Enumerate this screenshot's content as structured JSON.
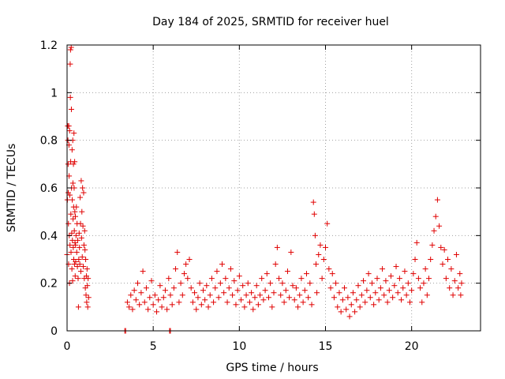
{
  "chart_data": {
    "type": "scatter",
    "title": "Day 184 of 2025, SRMTID for receiver huel",
    "xlabel": "GPS time / hours",
    "ylabel": "SRMTID / TECUs",
    "xlim": [
      0,
      24
    ],
    "ylim": [
      0,
      1.2
    ],
    "xticks": [
      0,
      5,
      10,
      15,
      20
    ],
    "xtick_labels": [
      "0",
      "5",
      "10",
      "15",
      "20"
    ],
    "yticks": [
      0,
      0.2,
      0.4,
      0.6,
      0.8,
      1.0,
      1.2
    ],
    "ytick_labels": [
      "0",
      "0.2",
      "0.4",
      "0.6",
      "0.8",
      "1",
      "1.2"
    ],
    "grid": true,
    "marker": "+",
    "color": "#e00000",
    "series": [
      {
        "name": "SRMTID",
        "points": [
          [
            0.0,
            0.32
          ],
          [
            0.02,
            0.55
          ],
          [
            0.04,
            0.86
          ],
          [
            0.05,
            0.8
          ],
          [
            0.06,
            0.7
          ],
          [
            0.07,
            0.58
          ],
          [
            0.08,
            0.45
          ],
          [
            0.09,
            0.28
          ],
          [
            0.1,
            0.86
          ],
          [
            0.11,
            0.78
          ],
          [
            0.12,
            0.65
          ],
          [
            0.13,
            0.4
          ],
          [
            0.14,
            0.2
          ],
          [
            0.15,
            0.84
          ],
          [
            0.16,
            0.57
          ],
          [
            0.17,
            0.36
          ],
          [
            0.18,
            1.12
          ],
          [
            0.19,
            0.98
          ],
          [
            0.2,
            1.18
          ],
          [
            0.21,
            0.71
          ],
          [
            0.22,
            0.49
          ],
          [
            0.23,
            0.33
          ],
          [
            0.24,
            1.19
          ],
          [
            0.25,
            0.93
          ],
          [
            0.26,
            0.6
          ],
          [
            0.27,
            0.41
          ],
          [
            0.28,
            0.26
          ],
          [
            0.29,
            0.76
          ],
          [
            0.3,
            0.55
          ],
          [
            0.31,
            0.38
          ],
          [
            0.32,
            0.21
          ],
          [
            0.33,
            0.8
          ],
          [
            0.34,
            0.62
          ],
          [
            0.35,
            0.47
          ],
          [
            0.36,
            0.35
          ],
          [
            0.37,
            0.7
          ],
          [
            0.38,
            0.52
          ],
          [
            0.39,
            0.3
          ],
          [
            0.4,
            0.83
          ],
          [
            0.41,
            0.6
          ],
          [
            0.42,
            0.42
          ],
          [
            0.43,
            0.28
          ],
          [
            0.44,
            0.71
          ],
          [
            0.45,
            0.5
          ],
          [
            0.46,
            0.37
          ],
          [
            0.47,
            0.23
          ],
          [
            0.48,
            0.48
          ],
          [
            0.49,
            0.36
          ],
          [
            0.5,
            0.29
          ],
          [
            0.52,
            0.4
          ],
          [
            0.54,
            0.52
          ],
          [
            0.56,
            0.33
          ],
          [
            0.58,
            0.45
          ],
          [
            0.6,
            0.27
          ],
          [
            0.62,
            0.38
          ],
          [
            0.64,
            0.22
          ],
          [
            0.66,
            0.1
          ],
          [
            0.68,
            0.3
          ],
          [
            0.7,
            0.41
          ],
          [
            0.72,
            0.35
          ],
          [
            0.74,
            0.28
          ],
          [
            0.76,
            0.56
          ],
          [
            0.78,
            0.45
          ],
          [
            0.8,
            0.25
          ],
          [
            0.82,
            0.63
          ],
          [
            0.84,
            0.39
          ],
          [
            0.86,
            0.5
          ],
          [
            0.88,
            0.31
          ],
          [
            0.9,
            0.6
          ],
          [
            0.92,
            0.44
          ],
          [
            0.94,
            0.27
          ],
          [
            0.96,
            0.58
          ],
          [
            0.98,
            0.36
          ],
          [
            1.0,
            0.22
          ],
          [
            1.02,
            0.42
          ],
          [
            1.04,
            0.34
          ],
          [
            1.06,
            0.18
          ],
          [
            1.08,
            0.3
          ],
          [
            1.1,
            0.15
          ],
          [
            1.12,
            0.23
          ],
          [
            1.14,
            0.12
          ],
          [
            1.16,
            0.26
          ],
          [
            1.18,
            0.19
          ],
          [
            1.2,
            0.1
          ],
          [
            1.22,
            0.22
          ],
          [
            1.25,
            0.14
          ],
          [
            3.35,
            0.0
          ],
          [
            3.4,
            0.0
          ],
          [
            5.95,
            0.0
          ],
          [
            6.0,
            0.0
          ],
          [
            3.5,
            0.12
          ],
          [
            3.6,
            0.1
          ],
          [
            3.7,
            0.15
          ],
          [
            3.8,
            0.09
          ],
          [
            3.9,
            0.17
          ],
          [
            4.0,
            0.13
          ],
          [
            4.1,
            0.2
          ],
          [
            4.2,
            0.11
          ],
          [
            4.3,
            0.16
          ],
          [
            4.4,
            0.25
          ],
          [
            4.5,
            0.12
          ],
          [
            4.6,
            0.18
          ],
          [
            4.7,
            0.09
          ],
          [
            4.8,
            0.14
          ],
          [
            4.9,
            0.21
          ],
          [
            5.0,
            0.11
          ],
          [
            5.1,
            0.15
          ],
          [
            5.2,
            0.08
          ],
          [
            5.3,
            0.13
          ],
          [
            5.4,
            0.19
          ],
          [
            5.5,
            0.1
          ],
          [
            5.6,
            0.14
          ],
          [
            5.7,
            0.17
          ],
          [
            5.8,
            0.09
          ],
          [
            5.9,
            0.22
          ],
          [
            6.0,
            0.15
          ],
          [
            6.1,
            0.11
          ],
          [
            6.2,
            0.18
          ],
          [
            6.3,
            0.26
          ],
          [
            6.4,
            0.33
          ],
          [
            6.5,
            0.12
          ],
          [
            6.6,
            0.2
          ],
          [
            6.7,
            0.15
          ],
          [
            6.8,
            0.24
          ],
          [
            6.9,
            0.28
          ],
          [
            7.0,
            0.22
          ],
          [
            7.1,
            0.3
          ],
          [
            7.2,
            0.18
          ],
          [
            7.3,
            0.12
          ],
          [
            7.4,
            0.16
          ],
          [
            7.5,
            0.09
          ],
          [
            7.6,
            0.14
          ],
          [
            7.7,
            0.2
          ],
          [
            7.8,
            0.11
          ],
          [
            7.9,
            0.17
          ],
          [
            8.0,
            0.13
          ],
          [
            8.1,
            0.19
          ],
          [
            8.2,
            0.1
          ],
          [
            8.3,
            0.15
          ],
          [
            8.4,
            0.22
          ],
          [
            8.5,
            0.12
          ],
          [
            8.6,
            0.18
          ],
          [
            8.7,
            0.25
          ],
          [
            8.8,
            0.14
          ],
          [
            8.9,
            0.2
          ],
          [
            9.0,
            0.28
          ],
          [
            9.1,
            0.16
          ],
          [
            9.2,
            0.22
          ],
          [
            9.3,
            0.12
          ],
          [
            9.4,
            0.18
          ],
          [
            9.5,
            0.26
          ],
          [
            9.6,
            0.15
          ],
          [
            9.7,
            0.21
          ],
          [
            9.8,
            0.11
          ],
          [
            9.9,
            0.17
          ],
          [
            10.0,
            0.23
          ],
          [
            10.1,
            0.13
          ],
          [
            10.2,
            0.19
          ],
          [
            10.3,
            0.1
          ],
          [
            10.4,
            0.15
          ],
          [
            10.5,
            0.2
          ],
          [
            10.6,
            0.12
          ],
          [
            10.7,
            0.16
          ],
          [
            10.8,
            0.09
          ],
          [
            10.9,
            0.14
          ],
          [
            11.0,
            0.19
          ],
          [
            11.1,
            0.11
          ],
          [
            11.2,
            0.15
          ],
          [
            11.3,
            0.22
          ],
          [
            11.4,
            0.13
          ],
          [
            11.5,
            0.17
          ],
          [
            11.6,
            0.24
          ],
          [
            11.7,
            0.14
          ],
          [
            11.8,
            0.2
          ],
          [
            11.9,
            0.1
          ],
          [
            12.0,
            0.16
          ],
          [
            12.1,
            0.28
          ],
          [
            12.2,
            0.35
          ],
          [
            12.3,
            0.22
          ],
          [
            12.4,
            0.15
          ],
          [
            12.5,
            0.2
          ],
          [
            12.6,
            0.12
          ],
          [
            12.7,
            0.17
          ],
          [
            12.8,
            0.25
          ],
          [
            12.9,
            0.14
          ],
          [
            13.0,
            0.33
          ],
          [
            13.1,
            0.19
          ],
          [
            13.2,
            0.13
          ],
          [
            13.3,
            0.18
          ],
          [
            13.4,
            0.1
          ],
          [
            13.5,
            0.15
          ],
          [
            13.6,
            0.22
          ],
          [
            13.7,
            0.12
          ],
          [
            13.8,
            0.17
          ],
          [
            13.9,
            0.24
          ],
          [
            14.0,
            0.14
          ],
          [
            14.1,
            0.2
          ],
          [
            14.2,
            0.11
          ],
          [
            14.3,
            0.54
          ],
          [
            14.35,
            0.49
          ],
          [
            14.4,
            0.4
          ],
          [
            14.45,
            0.28
          ],
          [
            14.5,
            0.16
          ],
          [
            14.6,
            0.32
          ],
          [
            14.7,
            0.36
          ],
          [
            14.8,
            0.22
          ],
          [
            14.9,
            0.3
          ],
          [
            15.0,
            0.35
          ],
          [
            15.1,
            0.45
          ],
          [
            15.2,
            0.26
          ],
          [
            15.3,
            0.18
          ],
          [
            15.4,
            0.24
          ],
          [
            15.5,
            0.14
          ],
          [
            15.6,
            0.2
          ],
          [
            15.7,
            0.1
          ],
          [
            15.8,
            0.16
          ],
          [
            15.9,
            0.08
          ],
          [
            16.0,
            0.13
          ],
          [
            16.1,
            0.18
          ],
          [
            16.2,
            0.09
          ],
          [
            16.3,
            0.14
          ],
          [
            16.4,
            0.06
          ],
          [
            16.5,
            0.11
          ],
          [
            16.6,
            0.16
          ],
          [
            16.7,
            0.08
          ],
          [
            16.8,
            0.13
          ],
          [
            16.9,
            0.19
          ],
          [
            17.0,
            0.1
          ],
          [
            17.1,
            0.15
          ],
          [
            17.2,
            0.21
          ],
          [
            17.3,
            0.12
          ],
          [
            17.4,
            0.17
          ],
          [
            17.5,
            0.24
          ],
          [
            17.6,
            0.14
          ],
          [
            17.7,
            0.2
          ],
          [
            17.8,
            0.11
          ],
          [
            17.9,
            0.16
          ],
          [
            18.0,
            0.22
          ],
          [
            18.1,
            0.13
          ],
          [
            18.2,
            0.18
          ],
          [
            18.3,
            0.26
          ],
          [
            18.4,
            0.15
          ],
          [
            18.5,
            0.21
          ],
          [
            18.6,
            0.12
          ],
          [
            18.7,
            0.17
          ],
          [
            18.8,
            0.23
          ],
          [
            18.9,
            0.14
          ],
          [
            19.0,
            0.19
          ],
          [
            19.1,
            0.27
          ],
          [
            19.2,
            0.16
          ],
          [
            19.3,
            0.22
          ],
          [
            19.4,
            0.13
          ],
          [
            19.5,
            0.18
          ],
          [
            19.6,
            0.25
          ],
          [
            19.7,
            0.15
          ],
          [
            19.8,
            0.2
          ],
          [
            19.9,
            0.12
          ],
          [
            20.0,
            0.17
          ],
          [
            20.1,
            0.24
          ],
          [
            20.2,
            0.3
          ],
          [
            20.3,
            0.37
          ],
          [
            20.4,
            0.22
          ],
          [
            20.5,
            0.18
          ],
          [
            20.6,
            0.12
          ],
          [
            20.7,
            0.2
          ],
          [
            20.8,
            0.26
          ],
          [
            20.9,
            0.15
          ],
          [
            21.0,
            0.22
          ],
          [
            21.1,
            0.3
          ],
          [
            21.2,
            0.36
          ],
          [
            21.3,
            0.42
          ],
          [
            21.4,
            0.48
          ],
          [
            21.5,
            0.55
          ],
          [
            21.6,
            0.44
          ],
          [
            21.7,
            0.35
          ],
          [
            21.8,
            0.28
          ],
          [
            21.9,
            0.34
          ],
          [
            22.0,
            0.22
          ],
          [
            22.1,
            0.3
          ],
          [
            22.2,
            0.18
          ],
          [
            22.3,
            0.26
          ],
          [
            22.4,
            0.15
          ],
          [
            22.5,
            0.21
          ],
          [
            22.6,
            0.32
          ],
          [
            22.7,
            0.18
          ],
          [
            22.8,
            0.24
          ],
          [
            22.85,
            0.15
          ],
          [
            22.9,
            0.2
          ]
        ]
      }
    ]
  }
}
